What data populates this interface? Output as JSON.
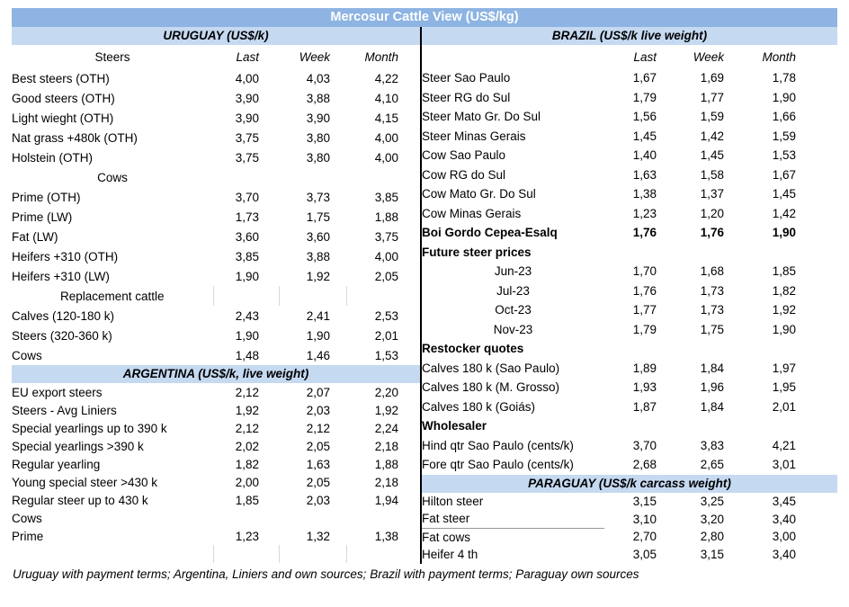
{
  "title": "Mercosur Cattle View (US$/kg)",
  "footer": "Uruguay with payment terms; Argentina, Liniers and own sources; Brazil with payment terms; Paraguay own sources",
  "columns": {
    "left_label": "Steers",
    "last": "Last",
    "week": "Week",
    "month": "Month"
  },
  "colors": {
    "title_bg": "#8DB4E2",
    "section_bg": "#C5D9F1",
    "divider": "#000000",
    "tick": "#D9D9D9",
    "underline": "#999999",
    "title_text": "#FFFFFF",
    "body_text": "#000000"
  },
  "left": {
    "uruguay": {
      "header": "URUGUAY (US$/k)",
      "rows": [
        {
          "label": "Best steers (OTH)",
          "values": [
            "4,00",
            "4,03",
            "4,22"
          ]
        },
        {
          "label": "Good steers (OTH)",
          "values": [
            "3,90",
            "3,88",
            "4,10"
          ]
        },
        {
          "label": "Light wieght (OTH)",
          "values": [
            "3,90",
            "3,90",
            "4,15"
          ]
        },
        {
          "label": "Nat grass +480k (OTH)",
          "values": [
            "3,75",
            "3,80",
            "4,00"
          ]
        },
        {
          "label": "Holstein (OTH)",
          "values": [
            "3,75",
            "3,80",
            "4,00"
          ]
        },
        {
          "label": "Cows",
          "center": true
        },
        {
          "label": "Prime (OTH)",
          "values": [
            "3,70",
            "3,73",
            "3,85"
          ]
        },
        {
          "label": "Prime (LW)",
          "values": [
            "1,73",
            "1,75",
            "1,88"
          ]
        },
        {
          "label": "Fat (LW)",
          "values": [
            "3,60",
            "3,60",
            "3,75"
          ]
        },
        {
          "label": "Heifers +310 (OTH)",
          "values": [
            "3,85",
            "3,88",
            "4,00"
          ]
        },
        {
          "label": "Heifers +310 (LW)",
          "values": [
            "1,90",
            "1,92",
            "2,05"
          ]
        },
        {
          "label": "Replacement cattle",
          "center": true,
          "ticks": true
        },
        {
          "label": "Calves (120-180 k)",
          "values": [
            "2,43",
            "2,41",
            "2,53"
          ]
        },
        {
          "label": "Steers (320-360 k)",
          "values": [
            "1,90",
            "1,90",
            "2,01"
          ]
        },
        {
          "label": "Cows",
          "values": [
            "1,48",
            "1,46",
            "1,53"
          ]
        }
      ]
    },
    "argentina": {
      "header": "ARGENTINA (US$/k, live weight)",
      "rows": [
        {
          "label": "EU export steers",
          "values": [
            "2,12",
            "2,07",
            "2,20"
          ]
        },
        {
          "label": "Steers - Avg Liniers",
          "values": [
            "1,92",
            "2,03",
            "1,92"
          ]
        },
        {
          "label": "Special yearlings up to 390 k",
          "values": [
            "2,12",
            "2,12",
            "2,24"
          ]
        },
        {
          "label": "Special yearlings >390 k",
          "values": [
            "2,02",
            "2,05",
            "2,18"
          ]
        },
        {
          "label": "Regular yearling",
          "values": [
            "1,82",
            "1,63",
            "1,88"
          ]
        },
        {
          "label": "Young special steer >430 k",
          "values": [
            "2,00",
            "2,05",
            "2,18"
          ]
        },
        {
          "label": "Regular steer up to 430 k",
          "values": [
            "1,85",
            "2,03",
            "1,94"
          ]
        },
        {
          "label": "Cows"
        },
        {
          "label": "Prime",
          "values": [
            "1,23",
            "1,32",
            "1,38"
          ]
        },
        {
          "label": "",
          "ticks": true
        }
      ]
    }
  },
  "right": {
    "brazil": {
      "header": "BRAZIL  (US$/k live weight)",
      "rows": [
        {
          "label": "Steer Sao Paulo",
          "values": [
            "1,67",
            "1,69",
            "1,78"
          ]
        },
        {
          "label": "Steer RG do Sul",
          "values": [
            "1,79",
            "1,77",
            "1,90"
          ]
        },
        {
          "label": "Steer Mato Gr. Do Sul",
          "values": [
            "1,56",
            "1,59",
            "1,66"
          ]
        },
        {
          "label": "Steer Minas Gerais",
          "values": [
            "1,45",
            "1,42",
            "1,59"
          ]
        },
        {
          "label": "Cow Sao Paulo",
          "values": [
            "1,40",
            "1,45",
            "1,53"
          ]
        },
        {
          "label": "Cow RG do Sul",
          "values": [
            "1,63",
            "1,58",
            "1,67"
          ]
        },
        {
          "label": "Cow Mato Gr. Do Sul",
          "values": [
            "1,38",
            "1,37",
            "1,45"
          ]
        },
        {
          "label": "Cow Minas Gerais",
          "values": [
            "1,23",
            "1,20",
            "1,42"
          ]
        },
        {
          "label": "Boi Gordo Cepea-Esalq",
          "values": [
            "1,76",
            "1,76",
            "1,90"
          ],
          "bold": true
        },
        {
          "label": "Future steer prices",
          "bold": true
        },
        {
          "label": "Jun-23",
          "values": [
            "1,70",
            "1,68",
            "1,85"
          ],
          "center": true
        },
        {
          "label": "Jul-23",
          "values": [
            "1,76",
            "1,73",
            "1,82"
          ],
          "center": true
        },
        {
          "label": "Oct-23",
          "values": [
            "1,77",
            "1,73",
            "1,92"
          ],
          "center": true
        },
        {
          "label": "Nov-23",
          "values": [
            "1,79",
            "1,75",
            "1,90"
          ],
          "center": true
        },
        {
          "label": "Restocker quotes",
          "bold": true
        },
        {
          "label": "Calves 180 k (Sao Paulo)",
          "values": [
            "1,89",
            "1,84",
            "1,97"
          ]
        },
        {
          "label": "Calves 180 k (M. Grosso)",
          "values": [
            "1,93",
            "1,96",
            "1,95"
          ]
        },
        {
          "label": "Calves 180 k (Goiás)",
          "values": [
            "1,87",
            "1,84",
            "2,01"
          ]
        },
        {
          "label": "Wholesaler",
          "bold": true
        },
        {
          "label": "Hind qtr Sao Paulo (cents/k)",
          "values": [
            "3,70",
            "3,83",
            "4,21"
          ]
        },
        {
          "label": "Fore qtr Sao Paulo (cents/k)",
          "values": [
            "2,68",
            "2,65",
            "3,01"
          ]
        }
      ]
    },
    "paraguay": {
      "header": "PARAGUAY  (US$/k carcass weight)",
      "rows": [
        {
          "label": "Hilton steer",
          "values": [
            "3,15",
            "3,25",
            "3,45"
          ]
        },
        {
          "label": "Fat steer",
          "values": [
            "3,10",
            "3,20",
            "3,40"
          ],
          "underline": true
        },
        {
          "label": "Fat cows",
          "values": [
            "2,70",
            "2,80",
            "3,00"
          ]
        },
        {
          "label": "Heifer 4 th",
          "values": [
            "3,05",
            "3,15",
            "3,40"
          ]
        }
      ]
    }
  }
}
